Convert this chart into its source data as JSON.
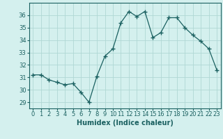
{
  "x": [
    0,
    1,
    2,
    3,
    4,
    5,
    6,
    7,
    8,
    9,
    10,
    11,
    12,
    13,
    14,
    15,
    16,
    17,
    18,
    19,
    20,
    21,
    22,
    23
  ],
  "y": [
    31.2,
    31.2,
    30.8,
    30.6,
    30.4,
    30.5,
    29.8,
    29.0,
    31.1,
    32.7,
    33.3,
    35.4,
    36.3,
    35.9,
    36.3,
    34.2,
    34.6,
    35.8,
    35.8,
    35.0,
    34.4,
    33.9,
    33.3,
    31.6
  ],
  "line_color": "#1a6060",
  "marker": "+",
  "marker_size": 4,
  "bg_color": "#d4f0ee",
  "grid_color": "#b0d8d4",
  "xlabel": "Humidex (Indice chaleur)",
  "ylim": [
    28.5,
    37.0
  ],
  "xlim": [
    -0.5,
    23.5
  ],
  "yticks": [
    29,
    30,
    31,
    32,
    33,
    34,
    35,
    36
  ],
  "xticks": [
    0,
    1,
    2,
    3,
    4,
    5,
    6,
    7,
    8,
    9,
    10,
    11,
    12,
    13,
    14,
    15,
    16,
    17,
    18,
    19,
    20,
    21,
    22,
    23
  ],
  "label_fontsize": 7,
  "tick_fontsize": 6
}
